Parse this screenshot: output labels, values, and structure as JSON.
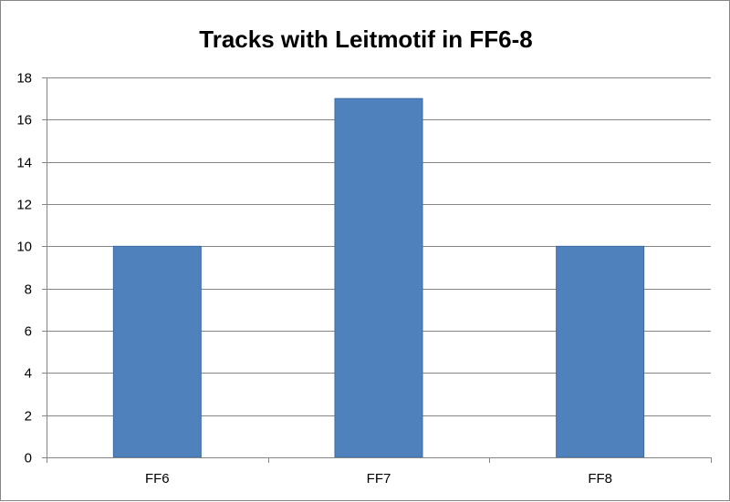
{
  "chart_data": {
    "type": "bar",
    "title": "Tracks with Leitmotif in FF6-8",
    "categories": [
      "FF6",
      "FF7",
      "FF8"
    ],
    "values": [
      10,
      17,
      10
    ],
    "xlabel": "",
    "ylabel": "",
    "ylim": [
      0,
      18
    ],
    "yticks": [
      0,
      2,
      4,
      6,
      8,
      10,
      12,
      14,
      16,
      18
    ],
    "grid": true,
    "legend": "none",
    "colors": {
      "bar": "#4F81BD",
      "bar_edge": "#3A6BA5",
      "grid": "#868686",
      "axis": "#868686"
    }
  }
}
